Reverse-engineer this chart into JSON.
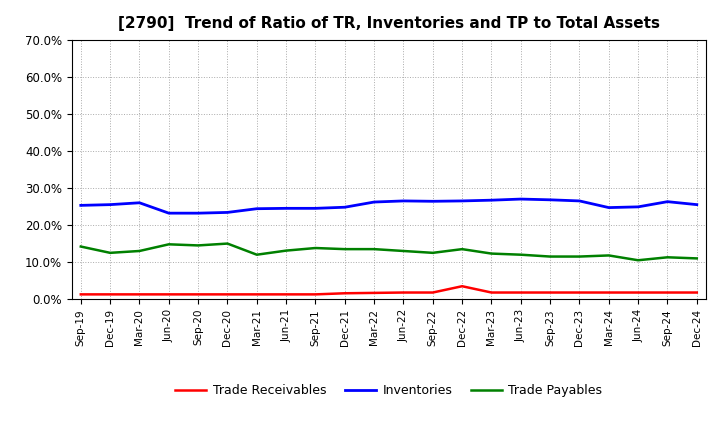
{
  "title": "[2790]  Trend of Ratio of TR, Inventories and TP to Total Assets",
  "x_labels": [
    "Sep-19",
    "Dec-19",
    "Mar-20",
    "Jun-20",
    "Sep-20",
    "Dec-20",
    "Mar-21",
    "Jun-21",
    "Sep-21",
    "Dec-21",
    "Mar-22",
    "Jun-22",
    "Sep-22",
    "Dec-22",
    "Mar-23",
    "Jun-23",
    "Sep-23",
    "Dec-23",
    "Mar-24",
    "Jun-24",
    "Sep-24",
    "Dec-24"
  ],
  "trade_receivables": [
    0.013,
    0.013,
    0.013,
    0.013,
    0.013,
    0.013,
    0.013,
    0.013,
    0.013,
    0.016,
    0.017,
    0.018,
    0.018,
    0.035,
    0.018,
    0.018,
    0.018,
    0.018,
    0.018,
    0.018,
    0.018,
    0.018
  ],
  "inventories": [
    0.253,
    0.255,
    0.26,
    0.232,
    0.232,
    0.234,
    0.244,
    0.245,
    0.245,
    0.248,
    0.262,
    0.265,
    0.264,
    0.265,
    0.267,
    0.27,
    0.268,
    0.265,
    0.247,
    0.249,
    0.263,
    0.255
  ],
  "trade_payables": [
    0.142,
    0.125,
    0.13,
    0.148,
    0.145,
    0.15,
    0.12,
    0.131,
    0.138,
    0.135,
    0.135,
    0.13,
    0.125,
    0.135,
    0.123,
    0.12,
    0.115,
    0.115,
    0.118,
    0.105,
    0.113,
    0.11
  ],
  "ylim": [
    0.0,
    0.7
  ],
  "yticks": [
    0.0,
    0.1,
    0.2,
    0.3,
    0.4,
    0.5,
    0.6,
    0.7
  ],
  "color_tr": "#ff0000",
  "color_inv": "#0000ff",
  "color_tp": "#008000",
  "legend_labels": [
    "Trade Receivables",
    "Inventories",
    "Trade Payables"
  ],
  "background_color": "#ffffff",
  "grid_color": "#aaaaaa"
}
